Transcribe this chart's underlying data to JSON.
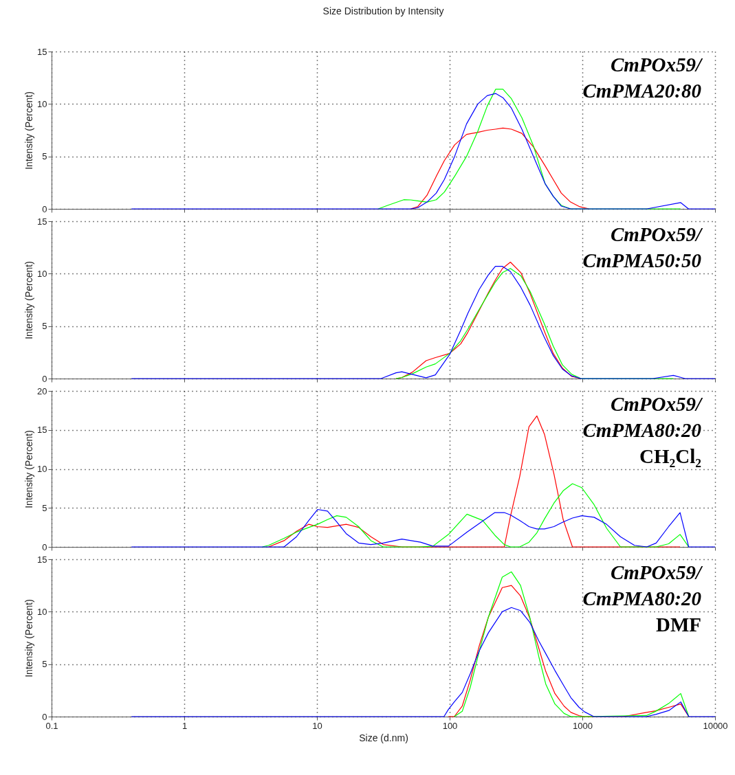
{
  "chart_data": [
    {
      "type": "line",
      "title": "Size Distribution by Intensity",
      "ylabel": "Intensity (Percent)",
      "log": "x",
      "grid": true,
      "tick_labels": "y",
      "xlim": [
        0.1,
        10000
      ],
      "xticks": [
        0.1,
        1,
        10,
        100,
        1000,
        10000
      ],
      "ylim": [
        0,
        15
      ],
      "yticks": [
        0,
        5,
        10,
        15
      ],
      "annotations": [
        "CmPOx59/",
        "CmPMA20:80"
      ],
      "x": [
        0.4,
        29.0,
        34.0,
        45.1,
        50.9,
        57.4,
        67.5,
        79.2,
        91.2,
        109,
        134,
        163,
        192,
        222,
        252,
        292,
        350,
        428,
        524,
        603,
        694,
        815,
        957,
        1124,
        3069,
        5495,
        6310,
        10000
      ],
      "series": [
        {
          "color": "#ff0000",
          "values": [
            null,
            null,
            null,
            null,
            0,
            0.2,
            1.3,
            3.1,
            4.6,
            6.1,
            7.1,
            7.3,
            7.5,
            7.6,
            7.7,
            7.6,
            7.2,
            5.9,
            4.1,
            2.8,
            1.5,
            0.65,
            0.2,
            0,
            null,
            null,
            null,
            null
          ]
        },
        {
          "color": "#00ff00",
          "values": [
            null,
            0,
            0.33,
            0.87,
            0.85,
            0.76,
            0.65,
            0.87,
            1.6,
            3.1,
            5.0,
            7.4,
            9.8,
            11.4,
            11.4,
            10.5,
            8.7,
            6.0,
            2.4,
            1.2,
            0.33,
            0,
            null,
            null,
            null,
            0,
            null,
            null
          ]
        },
        {
          "color": "#0000ff",
          "values": [
            0,
            0,
            0,
            0,
            0,
            0.1,
            0.65,
            1.5,
            2.8,
            5.0,
            8.1,
            10.0,
            10.8,
            11.0,
            10.6,
            9.6,
            7.6,
            5.0,
            2.4,
            1.2,
            0.26,
            0,
            null,
            null,
            0,
            0.6,
            0,
            0
          ]
        }
      ]
    },
    {
      "type": "line",
      "ylabel": "Intensity (Percent)",
      "log": "x",
      "grid": true,
      "tick_labels": "y",
      "xlim": [
        0.1,
        10000
      ],
      "xticks": [
        0.1,
        1,
        10,
        100,
        1000,
        10000
      ],
      "ylim": [
        0,
        15
      ],
      "yticks": [
        0,
        5,
        10,
        15
      ],
      "annotations": [
        "CmPOx59/",
        "CmPMA50:50"
      ],
      "x": [
        0.4,
        30.4,
        39.4,
        43.6,
        52.2,
        66.4,
        78.0,
        100,
        121,
        137,
        167,
        196,
        221,
        250,
        287,
        344,
        404,
        514,
        603,
        708,
        832,
        977,
        3388,
        4853,
        5943,
        10000
      ],
      "series": [
        {
          "color": "#ff0000",
          "values": [
            null,
            null,
            0,
            0.1,
            0.6,
            1.7,
            2.0,
            2.4,
            3.3,
            4.4,
            6.5,
            8.2,
            9.4,
            10.5,
            11.1,
            10.1,
            8.1,
            4.6,
            2.4,
            1.0,
            0.2,
            0,
            null,
            null,
            null,
            null
          ]
        },
        {
          "color": "#00ff00",
          "values": [
            null,
            null,
            0,
            0.1,
            0.45,
            1.1,
            1.4,
            2.4,
            3.6,
            4.7,
            6.6,
            8.1,
            9.2,
            10.1,
            10.5,
            9.8,
            8.3,
            5.3,
            3.1,
            1.3,
            0.4,
            0,
            null,
            0,
            null,
            null
          ]
        },
        {
          "color": "#0000ff",
          "values": [
            0,
            0,
            0.55,
            0.65,
            0.4,
            0.07,
            0.35,
            2.3,
            4.6,
            6.2,
            8.5,
            9.9,
            10.7,
            10.7,
            10.2,
            8.7,
            7.0,
            4.0,
            2.2,
            0.9,
            0.25,
            0,
            0,
            0.3,
            0,
            0
          ]
        }
      ]
    },
    {
      "type": "line",
      "ylabel": "Intensity (Percent)",
      "log": "x",
      "grid": true,
      "tick_labels": "y",
      "xlim": [
        0.1,
        10000
      ],
      "xticks": [
        0.1,
        1,
        10,
        100,
        1000,
        10000
      ],
      "ylim": [
        0,
        20
      ],
      "yticks": [
        0,
        5,
        10,
        15,
        20
      ],
      "annotations": [
        "CmPOx59/",
        "CmPMA80:20",
        "CH₂Cl₂"
      ],
      "x": [
        0.4,
        3.88,
        4.32,
        5.65,
        7.01,
        8.69,
        10.1,
        12.0,
        14.1,
        16.6,
        20.6,
        25.5,
        31.6,
        43.6,
        60.3,
        74.8,
        98.0,
        135,
        177,
        219,
        258,
        287,
        337,
        396,
        454,
        519,
        610,
        717,
        842,
        989,
        1227,
        1521,
        1937,
        2469,
        3062,
        3600,
        4467,
        5449,
        6329,
        10000
      ],
      "series": [
        {
          "color": "#ff0000",
          "values": [
            null,
            null,
            0,
            0.8,
            2.0,
            2.9,
            2.6,
            2.5,
            2.7,
            2.9,
            2.5,
            1.3,
            0.3,
            0,
            0,
            0,
            0,
            0,
            0,
            0,
            0,
            3.9,
            9.0,
            15.4,
            16.8,
            14.4,
            9.4,
            3.5,
            0,
            0,
            0,
            0,
            0,
            0,
            null,
            0,
            0,
            0,
            null,
            null
          ]
        },
        {
          "color": "#00ff00",
          "values": [
            null,
            0,
            0.2,
            1.1,
            1.9,
            2.5,
            2.9,
            3.5,
            4.0,
            3.8,
            2.6,
            0.8,
            0,
            0,
            0,
            0.1,
            1.6,
            4.2,
            3.4,
            1.5,
            0.3,
            0,
            0,
            0.6,
            1.8,
            3.6,
            5.6,
            7.2,
            8.1,
            7.6,
            5.4,
            2.4,
            0,
            null,
            null,
            0,
            0.4,
            1.6,
            0,
            null
          ]
        },
        {
          "color": "#0000ff",
          "values": [
            0,
            0,
            0,
            0,
            1.3,
            3.4,
            4.8,
            4.6,
            3.2,
            1.7,
            0.5,
            0.3,
            0.5,
            1.0,
            0.6,
            0.1,
            0.1,
            1.9,
            3.3,
            4.4,
            4.4,
            4.1,
            3.4,
            2.6,
            2.3,
            2.3,
            2.6,
            3.2,
            3.7,
            4.0,
            3.8,
            2.9,
            1.3,
            0.2,
            0,
            0.5,
            2.6,
            4.4,
            0,
            0
          ]
        }
      ]
    },
    {
      "type": "line",
      "xlabel": "Size (d.nm)",
      "ylabel": "Intensity (Percent)",
      "log": "x",
      "grid": true,
      "xlim": [
        0.1,
        10000
      ],
      "xticks": [
        0.1,
        1,
        10,
        100,
        1000,
        10000
      ],
      "ylim": [
        0,
        15
      ],
      "yticks": [
        0,
        5,
        10,
        15
      ],
      "annotations": [
        "CmPOx59/",
        "CmPMA80:20",
        "DMF"
      ],
      "x": [
        0.4,
        90.6,
        98.0,
        108.3,
        124.4,
        143,
        167.5,
        196,
        249,
        292,
        342,
        401,
        470,
        530,
        621,
        728,
        820,
        942,
        1040,
        1219,
        2042,
        3040,
        3565,
        4522,
        5510,
        6339,
        10000
      ],
      "series": [
        {
          "color": "#ff0000",
          "values": [
            null,
            null,
            0,
            0,
            1.0,
            3.5,
            6.8,
            9.5,
            12.3,
            12.5,
            11.5,
            9.4,
            6.5,
            4.3,
            2.2,
            1.0,
            0.4,
            0.1,
            0,
            null,
            0,
            0.4,
            0.55,
            0.9,
            1.2,
            0,
            null
          ]
        },
        {
          "color": "#00ff00",
          "values": [
            null,
            null,
            null,
            0,
            0.5,
            2.8,
            6.3,
            9.5,
            13.3,
            13.8,
            12.5,
            9.5,
            5.7,
            3.1,
            1.2,
            0.3,
            0,
            0,
            0,
            null,
            null,
            0.1,
            0.5,
            1.3,
            2.2,
            0,
            null
          ]
        },
        {
          "color": "#0000ff",
          "values": [
            0,
            0,
            0.7,
            1.4,
            2.3,
            4.1,
            6.3,
            8.0,
            10.0,
            10.4,
            10.1,
            9.0,
            7.2,
            6.0,
            4.4,
            2.9,
            1.8,
            0.9,
            0.45,
            0,
            null,
            0,
            0.2,
            0.6,
            1.4,
            0,
            0
          ]
        }
      ]
    }
  ]
}
